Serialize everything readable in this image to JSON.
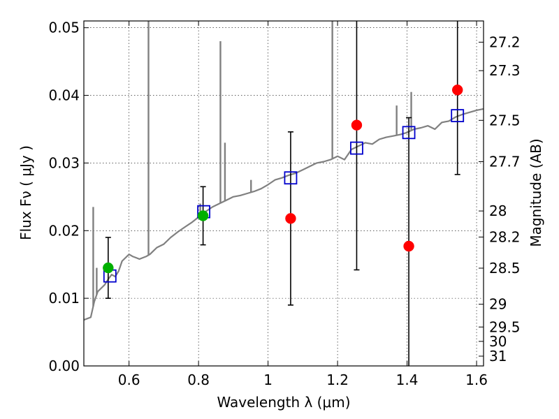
{
  "chart_data": {
    "type": "scatter",
    "xlabel": "Wavelength  λ (μm)",
    "ylabel": "Flux  Fν  ( μJy )",
    "y2label": "Magnitude (AB)",
    "xlim": [
      0.47,
      1.62
    ],
    "ylim": [
      0.0,
      0.051
    ],
    "grid": true,
    "x_ticks": [
      {
        "value": 0.6,
        "label": "0.6"
      },
      {
        "value": 0.8,
        "label": "0.8"
      },
      {
        "value": 1.0,
        "label": "1"
      },
      {
        "value": 1.2,
        "label": "1.2"
      },
      {
        "value": 1.4,
        "label": "1.4"
      },
      {
        "value": 1.6,
        "label": "1.6"
      }
    ],
    "y_ticks": [
      {
        "value": 0.0,
        "label": "0.00"
      },
      {
        "value": 0.01,
        "label": "0.01"
      },
      {
        "value": 0.02,
        "label": "0.02"
      },
      {
        "value": 0.03,
        "label": "0.03"
      },
      {
        "value": 0.04,
        "label": "0.04"
      },
      {
        "value": 0.05,
        "label": "0.05"
      }
    ],
    "y2_ticks": [
      {
        "label": "27.2",
        "mag": 27.2
      },
      {
        "label": "27.3",
        "mag": 27.3
      },
      {
        "label": "27.5",
        "mag": 27.5
      },
      {
        "label": "27.7",
        "mag": 27.7
      },
      {
        "label": "28",
        "mag": 28.0
      },
      {
        "label": "28.2",
        "mag": 28.2
      },
      {
        "label": "28.5",
        "mag": 28.5
      },
      {
        "label": "29",
        "mag": 29.0
      },
      {
        "label": "29.5",
        "mag": 29.5
      },
      {
        "label": "30",
        "mag": 30.0
      },
      {
        "label": "31",
        "mag": 31.0
      }
    ],
    "series": [
      {
        "kind": "model-spectrum",
        "color": "#808080",
        "x": [
          0.47,
          0.48,
          0.49,
          0.5,
          0.51,
          0.52,
          0.53,
          0.54,
          0.55,
          0.56,
          0.57,
          0.58,
          0.59,
          0.6,
          0.61,
          0.62,
          0.63,
          0.64,
          0.65,
          0.66,
          0.67,
          0.68,
          0.7,
          0.72,
          0.74,
          0.76,
          0.78,
          0.8,
          0.82,
          0.84,
          0.86,
          0.88,
          0.9,
          0.92,
          0.94,
          0.96,
          0.98,
          1.0,
          1.02,
          1.04,
          1.06,
          1.08,
          1.1,
          1.12,
          1.14,
          1.16,
          1.18,
          1.2,
          1.22,
          1.24,
          1.26,
          1.28,
          1.3,
          1.32,
          1.34,
          1.36,
          1.38,
          1.4,
          1.42,
          1.44,
          1.46,
          1.48,
          1.5,
          1.52,
          1.54,
          1.56,
          1.58,
          1.6,
          1.62
        ],
        "y": [
          0.0068,
          0.007,
          0.0072,
          0.0095,
          0.011,
          0.0115,
          0.012,
          0.0128,
          0.0135,
          0.0132,
          0.014,
          0.0155,
          0.016,
          0.0165,
          0.0162,
          0.016,
          0.0158,
          0.016,
          0.0162,
          0.0165,
          0.017,
          0.0175,
          0.018,
          0.019,
          0.0198,
          0.0205,
          0.0212,
          0.022,
          0.0228,
          0.0235,
          0.024,
          0.0245,
          0.025,
          0.0252,
          0.0255,
          0.0258,
          0.0262,
          0.0268,
          0.0275,
          0.0278,
          0.0282,
          0.0285,
          0.029,
          0.0295,
          0.03,
          0.0302,
          0.0305,
          0.031,
          0.0305,
          0.032,
          0.0325,
          0.033,
          0.0328,
          0.0335,
          0.0338,
          0.034,
          0.0342,
          0.0345,
          0.035,
          0.0352,
          0.0355,
          0.035,
          0.036,
          0.0362,
          0.0368,
          0.0372,
          0.0375,
          0.0378,
          0.038
        ]
      },
      {
        "kind": "emission-lines",
        "color": "#808080",
        "lines": [
          {
            "x": 0.497,
            "peak": 0.0235
          },
          {
            "x": 0.507,
            "peak": 0.0145
          },
          {
            "x": 0.656,
            "peak": 0.051
          },
          {
            "x": 0.805,
            "peak": 0.024
          },
          {
            "x": 0.863,
            "peak": 0.048
          },
          {
            "x": 0.876,
            "peak": 0.033
          },
          {
            "x": 0.951,
            "peak": 0.0275
          },
          {
            "x": 1.185,
            "peak": 0.051
          },
          {
            "x": 1.37,
            "peak": 0.0385
          },
          {
            "x": 1.412,
            "peak": 0.0405
          }
        ]
      },
      {
        "kind": "model-photometry",
        "marker": "open-square",
        "color": "#0000cc",
        "x": [
          0.545,
          0.815,
          1.065,
          1.255,
          1.405,
          1.545
        ],
        "y": [
          0.0133,
          0.0228,
          0.0278,
          0.0322,
          0.0345,
          0.037
        ]
      },
      {
        "kind": "detections",
        "marker": "filled-circle",
        "color": "#00b000",
        "x": [
          0.54,
          0.813
        ],
        "y": [
          0.0145,
          0.0222
        ],
        "err": [
          0.0045,
          0.0043
        ]
      },
      {
        "kind": "measurements",
        "marker": "filled-circle",
        "color": "#ff0000",
        "x": [
          1.065,
          1.255,
          1.405,
          1.545
        ],
        "y": [
          0.0218,
          0.0356,
          0.0177,
          0.0408
        ],
        "err": [
          0.0128,
          0.0214,
          0.019,
          0.0125
        ]
      }
    ]
  }
}
